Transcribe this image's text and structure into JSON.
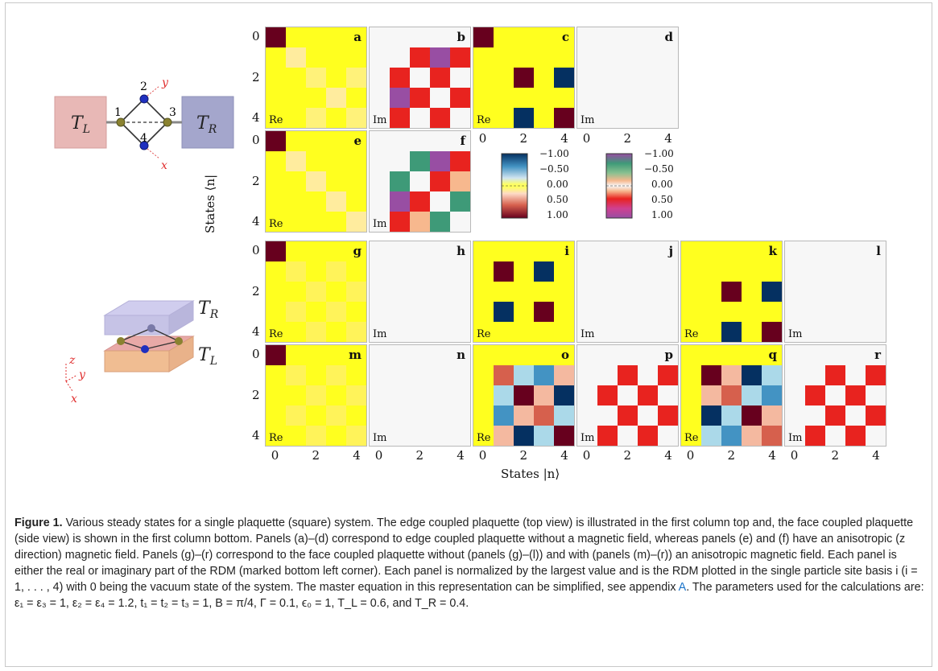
{
  "colors": {
    "yellow": "#ffff1f",
    "maroon": "#67001e",
    "navy": "#053061",
    "red": "#e8231f",
    "purple": "#984ea3",
    "teal": "#3e9a78",
    "salmon": "#f7b88e",
    "cream": "#ffec9e",
    "pale": "#f7f7f7",
    "peach": "#f4b9a0",
    "orange_red": "#d6604d",
    "lightblue": "#abd9e9",
    "midblue": "#4393c3"
  },
  "tick_labels": [
    "0",
    "2",
    "4"
  ],
  "axis": {
    "y_title": "States ⟨n|",
    "x_title": "States |n⟩"
  },
  "colorbar": {
    "labels": [
      "−1.00",
      "−0.50",
      "0.00",
      "0.50",
      "1.00"
    ]
  },
  "illustration": {
    "edge": {
      "left_bath": "T",
      "left_sub": "L",
      "right_bath": "T",
      "right_sub": "R",
      "site_labels": [
        "1",
        "2",
        "3",
        "4"
      ],
      "axis_y": "y",
      "axis_x": "x"
    },
    "face": {
      "top_bath": "T",
      "top_sub": "R",
      "bottom_bath": "T",
      "bottom_sub": "L",
      "axis_z": "z",
      "axis_y": "y",
      "axis_x": "x"
    }
  },
  "panels": [
    {
      "id": "a",
      "part": "Re",
      "grid": [
        [
          "M",
          "Y",
          "Y",
          "Y",
          "Y"
        ],
        [
          "Y",
          "C1",
          "Y",
          "Y",
          "Y"
        ],
        [
          "Y",
          "Y",
          "C2",
          "Y",
          "C2"
        ],
        [
          "Y",
          "Y",
          "Y",
          "C1",
          "Y"
        ],
        [
          "Y",
          "Y",
          "C2",
          "Y",
          "C2"
        ]
      ]
    },
    {
      "id": "b",
      "part": "Im",
      "grid": [
        [
          "P",
          "P",
          "P",
          "P",
          "P"
        ],
        [
          "P",
          "P",
          "R",
          "U",
          "R"
        ],
        [
          "P",
          "R",
          "P",
          "R",
          "P"
        ],
        [
          "P",
          "U",
          "R",
          "P",
          "R"
        ],
        [
          "P",
          "R",
          "P",
          "R",
          "P"
        ]
      ]
    },
    {
      "id": "c",
      "part": "Re",
      "grid": [
        [
          "M",
          "Y",
          "Y",
          "Y",
          "Y"
        ],
        [
          "Y",
          "Y",
          "Y",
          "Y",
          "Y"
        ],
        [
          "Y",
          "Y",
          "M",
          "Y",
          "N"
        ],
        [
          "Y",
          "Y",
          "Y",
          "Y",
          "Y"
        ],
        [
          "Y",
          "Y",
          "N",
          "Y",
          "M"
        ]
      ]
    },
    {
      "id": "d",
      "part": "Im",
      "grid": [
        [
          "P",
          "P",
          "P",
          "P",
          "P"
        ],
        [
          "P",
          "P",
          "P",
          "P",
          "P"
        ],
        [
          "P",
          "P",
          "P",
          "P",
          "P"
        ],
        [
          "P",
          "P",
          "P",
          "P",
          "P"
        ],
        [
          "P",
          "P",
          "P",
          "P",
          "P"
        ]
      ]
    },
    {
      "id": "e",
      "part": "Re",
      "grid": [
        [
          "M",
          "Y",
          "Y",
          "Y",
          "Y"
        ],
        [
          "Y",
          "C1",
          "Y",
          "Y",
          "Y"
        ],
        [
          "Y",
          "Y",
          "C1",
          "Y",
          "Y"
        ],
        [
          "Y",
          "Y",
          "Y",
          "C1",
          "Y"
        ],
        [
          "Y",
          "Y",
          "Y",
          "Y",
          "C1"
        ]
      ]
    },
    {
      "id": "f",
      "part": "Im",
      "grid": [
        [
          "P",
          "P",
          "P",
          "P",
          "P"
        ],
        [
          "P",
          "P",
          "T",
          "U",
          "R"
        ],
        [
          "P",
          "T",
          "P",
          "R",
          "S"
        ],
        [
          "P",
          "U",
          "R",
          "P",
          "T"
        ],
        [
          "P",
          "R",
          "S",
          "T",
          "P"
        ]
      ]
    },
    {
      "id": "g",
      "part": "Re",
      "grid": [
        [
          "M",
          "Y",
          "Y",
          "Y",
          "Y"
        ],
        [
          "Y",
          "C3",
          "Y",
          "C3",
          "Y"
        ],
        [
          "Y",
          "Y",
          "C3",
          "Y",
          "C3"
        ],
        [
          "Y",
          "C3",
          "Y",
          "C3",
          "Y"
        ],
        [
          "Y",
          "Y",
          "C3",
          "Y",
          "C3"
        ]
      ]
    },
    {
      "id": "h",
      "part": "Im",
      "grid": [
        [
          "P",
          "P",
          "P",
          "P",
          "P"
        ],
        [
          "P",
          "P",
          "P",
          "P",
          "P"
        ],
        [
          "P",
          "P",
          "P",
          "P",
          "P"
        ],
        [
          "P",
          "P",
          "P",
          "P",
          "P"
        ],
        [
          "P",
          "P",
          "P",
          "P",
          "P"
        ]
      ]
    },
    {
      "id": "i",
      "part": "Re",
      "grid": [
        [
          "Y",
          "Y",
          "Y",
          "Y",
          "Y"
        ],
        [
          "Y",
          "M",
          "Y",
          "N",
          "Y"
        ],
        [
          "Y",
          "Y",
          "Y",
          "Y",
          "Y"
        ],
        [
          "Y",
          "N",
          "Y",
          "M",
          "Y"
        ],
        [
          "Y",
          "Y",
          "Y",
          "Y",
          "Y"
        ]
      ]
    },
    {
      "id": "j",
      "part": "Im",
      "grid": [
        [
          "P",
          "P",
          "P",
          "P",
          "P"
        ],
        [
          "P",
          "P",
          "P",
          "P",
          "P"
        ],
        [
          "P",
          "P",
          "P",
          "P",
          "P"
        ],
        [
          "P",
          "P",
          "P",
          "P",
          "P"
        ],
        [
          "P",
          "P",
          "P",
          "P",
          "P"
        ]
      ]
    },
    {
      "id": "k",
      "part": "Re",
      "grid": [
        [
          "Y",
          "Y",
          "Y",
          "Y",
          "Y"
        ],
        [
          "Y",
          "Y",
          "Y",
          "Y",
          "Y"
        ],
        [
          "Y",
          "Y",
          "M",
          "Y",
          "N"
        ],
        [
          "Y",
          "Y",
          "Y",
          "Y",
          "Y"
        ],
        [
          "Y",
          "Y",
          "N",
          "Y",
          "M"
        ]
      ]
    },
    {
      "id": "l",
      "part": "Im",
      "grid": [
        [
          "P",
          "P",
          "P",
          "P",
          "P"
        ],
        [
          "P",
          "P",
          "P",
          "P",
          "P"
        ],
        [
          "P",
          "P",
          "P",
          "P",
          "P"
        ],
        [
          "P",
          "P",
          "P",
          "P",
          "P"
        ],
        [
          "P",
          "P",
          "P",
          "P",
          "P"
        ]
      ]
    },
    {
      "id": "m",
      "part": "Re",
      "grid": [
        [
          "M",
          "Y",
          "Y",
          "Y",
          "Y"
        ],
        [
          "Y",
          "C3",
          "Y",
          "C3",
          "Y"
        ],
        [
          "Y",
          "Y",
          "C3",
          "Y",
          "C3"
        ],
        [
          "Y",
          "C3",
          "Y",
          "C3",
          "Y"
        ],
        [
          "Y",
          "Y",
          "C3",
          "Y",
          "C3"
        ]
      ]
    },
    {
      "id": "n",
      "part": "Im",
      "grid": [
        [
          "P",
          "P",
          "P",
          "P",
          "P"
        ],
        [
          "P",
          "P",
          "P",
          "P",
          "P"
        ],
        [
          "P",
          "P",
          "P",
          "P",
          "P"
        ],
        [
          "P",
          "P",
          "P",
          "P",
          "P"
        ],
        [
          "P",
          "P",
          "P",
          "P",
          "P"
        ]
      ]
    },
    {
      "id": "o",
      "part": "Re",
      "grid": [
        [
          "Y",
          "Y",
          "Y",
          "Y",
          "Y"
        ],
        [
          "Y",
          "O",
          "L",
          "B",
          "K"
        ],
        [
          "Y",
          "L",
          "M",
          "K",
          "N"
        ],
        [
          "Y",
          "B",
          "K",
          "O",
          "L"
        ],
        [
          "Y",
          "K",
          "N",
          "L",
          "M"
        ]
      ]
    },
    {
      "id": "p",
      "part": "Im",
      "grid": [
        [
          "P",
          "P",
          "P",
          "P",
          "P"
        ],
        [
          "P",
          "P",
          "R",
          "P",
          "R"
        ],
        [
          "P",
          "R",
          "P",
          "R",
          "P"
        ],
        [
          "P",
          "P",
          "R",
          "P",
          "R"
        ],
        [
          "P",
          "R",
          "P",
          "R",
          "P"
        ]
      ]
    },
    {
      "id": "q",
      "part": "Re",
      "grid": [
        [
          "Y",
          "Y",
          "Y",
          "Y",
          "Y"
        ],
        [
          "Y",
          "M",
          "K",
          "N",
          "L"
        ],
        [
          "Y",
          "K",
          "O",
          "L",
          "B"
        ],
        [
          "Y",
          "N",
          "L",
          "M",
          "K"
        ],
        [
          "Y",
          "L",
          "B",
          "K",
          "O"
        ]
      ]
    },
    {
      "id": "r",
      "part": "Im",
      "grid": [
        [
          "P",
          "P",
          "P",
          "P",
          "P"
        ],
        [
          "P",
          "P",
          "R",
          "P",
          "R"
        ],
        [
          "P",
          "R",
          "P",
          "R",
          "P"
        ],
        [
          "P",
          "P",
          "R",
          "P",
          "R"
        ],
        [
          "P",
          "R",
          "P",
          "R",
          "P"
        ]
      ]
    }
  ],
  "caption": {
    "label": "Figure 1.",
    "text1": " Various steady states for a single plaquette (square) system. The edge coupled plaquette (top view) is illustrated in the first column top and, the face coupled plaquette (side view) is shown in the first column bottom. Panels (a)–(d) correspond to edge coupled plaquette without a magnetic field, whereas panels (e) and (f) have an anisotropic (z direction) magnetic field. Panels (g)–(r) correspond to the face coupled plaquette without (panels (g)–(l)) and with (panels (m)–(r)) an anisotropic magnetic field. Each panel is either the real or imaginary part of the RDM (marked bottom left corner). Each panel is normalized by the largest value and is the RDM plotted in the single particle site basis i (i = 1, . . . , 4) with 0 being the vacuum state of the system. The master equation in this representation can be simplified, see appendix ",
    "ref": "A",
    "text2": ". The parameters used for the calculations are: ε₁ = ε₃ = 1, ε₂ = ε₄ = 1.2, t₁ = t₂ = t₃ = 1, B = π/4, Γ = 0.1, ϵ₀ = 1, T_L = 0.6, and T_R = 0.4."
  }
}
